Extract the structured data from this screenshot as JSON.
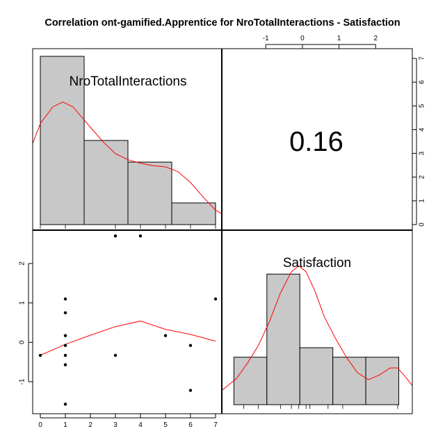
{
  "chart_data": {
    "type": "pairs",
    "title": "Correlation ont-gamified.Apprentice for NroTotalInteractions - Satisfaction",
    "variables": [
      "NroTotalInteractions",
      "Satisfaction"
    ],
    "correlation": "0.16",
    "colors": {
      "bar_fill": "#c8c8c8",
      "density": "#ff0000",
      "frame": "#000000"
    },
    "hist_x": {
      "name": "NroTotalInteractions",
      "breaks": [
        0,
        1.75,
        3.5,
        5.25,
        7
      ],
      "counts": [
        7,
        3.5,
        2.6,
        0.9
      ],
      "ticks": [
        0,
        1,
        2,
        3,
        4,
        5,
        6,
        7
      ],
      "rug": [
        0,
        1,
        3,
        4,
        5,
        6,
        7
      ],
      "density": [
        [
          -0.5,
          2.85
        ],
        [
          0,
          4.2
        ],
        [
          0.5,
          4.9
        ],
        [
          0.9,
          5.1
        ],
        [
          1.3,
          4.9
        ],
        [
          2,
          4.05
        ],
        [
          2.5,
          3.45
        ],
        [
          3,
          2.95
        ],
        [
          3.5,
          2.7
        ],
        [
          4,
          2.55
        ],
        [
          4.5,
          2.45
        ],
        [
          5,
          2.4
        ],
        [
          5.5,
          2.2
        ],
        [
          6,
          1.75
        ],
        [
          6.5,
          1.15
        ],
        [
          7,
          0.6
        ],
        [
          7.5,
          0.3
        ]
      ]
    },
    "hist_y": {
      "name": "Satisfaction",
      "breaks": [
        -1.87,
        -0.97,
        -0.07,
        0.83,
        1.73,
        2.63
      ],
      "counts": [
        2,
        5.5,
        2.4,
        2,
        2
      ],
      "right_axis_ticks": [
        0,
        1,
        2,
        3,
        4,
        5,
        6,
        7
      ],
      "top_axis_ticks": [
        -1,
        0,
        1,
        2
      ],
      "rug": [
        -1.6,
        -1.2,
        -0.6,
        -0.3,
        -0.1,
        0.1,
        0.2,
        0.7,
        1.1,
        2.6
      ],
      "density": [
        [
          -2.2,
          0.6
        ],
        [
          -1.8,
          1.1
        ],
        [
          -1.5,
          1.75
        ],
        [
          -1.2,
          2.5
        ],
        [
          -0.9,
          3.5
        ],
        [
          -0.6,
          4.7
        ],
        [
          -0.3,
          5.6
        ],
        [
          -0.1,
          5.85
        ],
        [
          0.1,
          5.6
        ],
        [
          0.35,
          4.75
        ],
        [
          0.6,
          3.7
        ],
        [
          0.9,
          2.8
        ],
        [
          1.2,
          2
        ],
        [
          1.5,
          1.35
        ],
        [
          1.8,
          1.05
        ],
        [
          2.1,
          1.25
        ],
        [
          2.4,
          1.55
        ],
        [
          2.6,
          1.55
        ],
        [
          2.85,
          1.1
        ],
        [
          3.0,
          0.8
        ]
      ]
    },
    "scatter": {
      "xlabel": "",
      "ylabel": "",
      "x_ticks": [
        0,
        1,
        2,
        3,
        4,
        5,
        6,
        7
      ],
      "y_ticks": [
        -1,
        0,
        1,
        2
      ],
      "xlim": [
        -0.3,
        7.3
      ],
      "ylim": [
        -1.75,
        2.85
      ],
      "points": [
        [
          0,
          -0.33
        ],
        [
          1,
          -1.57
        ],
        [
          1,
          -0.57
        ],
        [
          1,
          -0.33
        ],
        [
          1,
          -0.08
        ],
        [
          1,
          0.17
        ],
        [
          1,
          0.75
        ],
        [
          1,
          1.1
        ],
        [
          3,
          2.7
        ],
        [
          3,
          -0.33
        ],
        [
          4,
          2.7
        ],
        [
          5,
          0.17
        ],
        [
          6,
          -0.08
        ],
        [
          6,
          -1.22
        ],
        [
          7,
          1.1
        ]
      ],
      "smooth": [
        [
          0,
          -0.33
        ],
        [
          1,
          -0.05
        ],
        [
          2,
          0.18
        ],
        [
          3,
          0.4
        ],
        [
          4,
          0.54
        ],
        [
          5,
          0.33
        ],
        [
          6,
          0.2
        ],
        [
          7,
          0.03
        ]
      ]
    }
  }
}
